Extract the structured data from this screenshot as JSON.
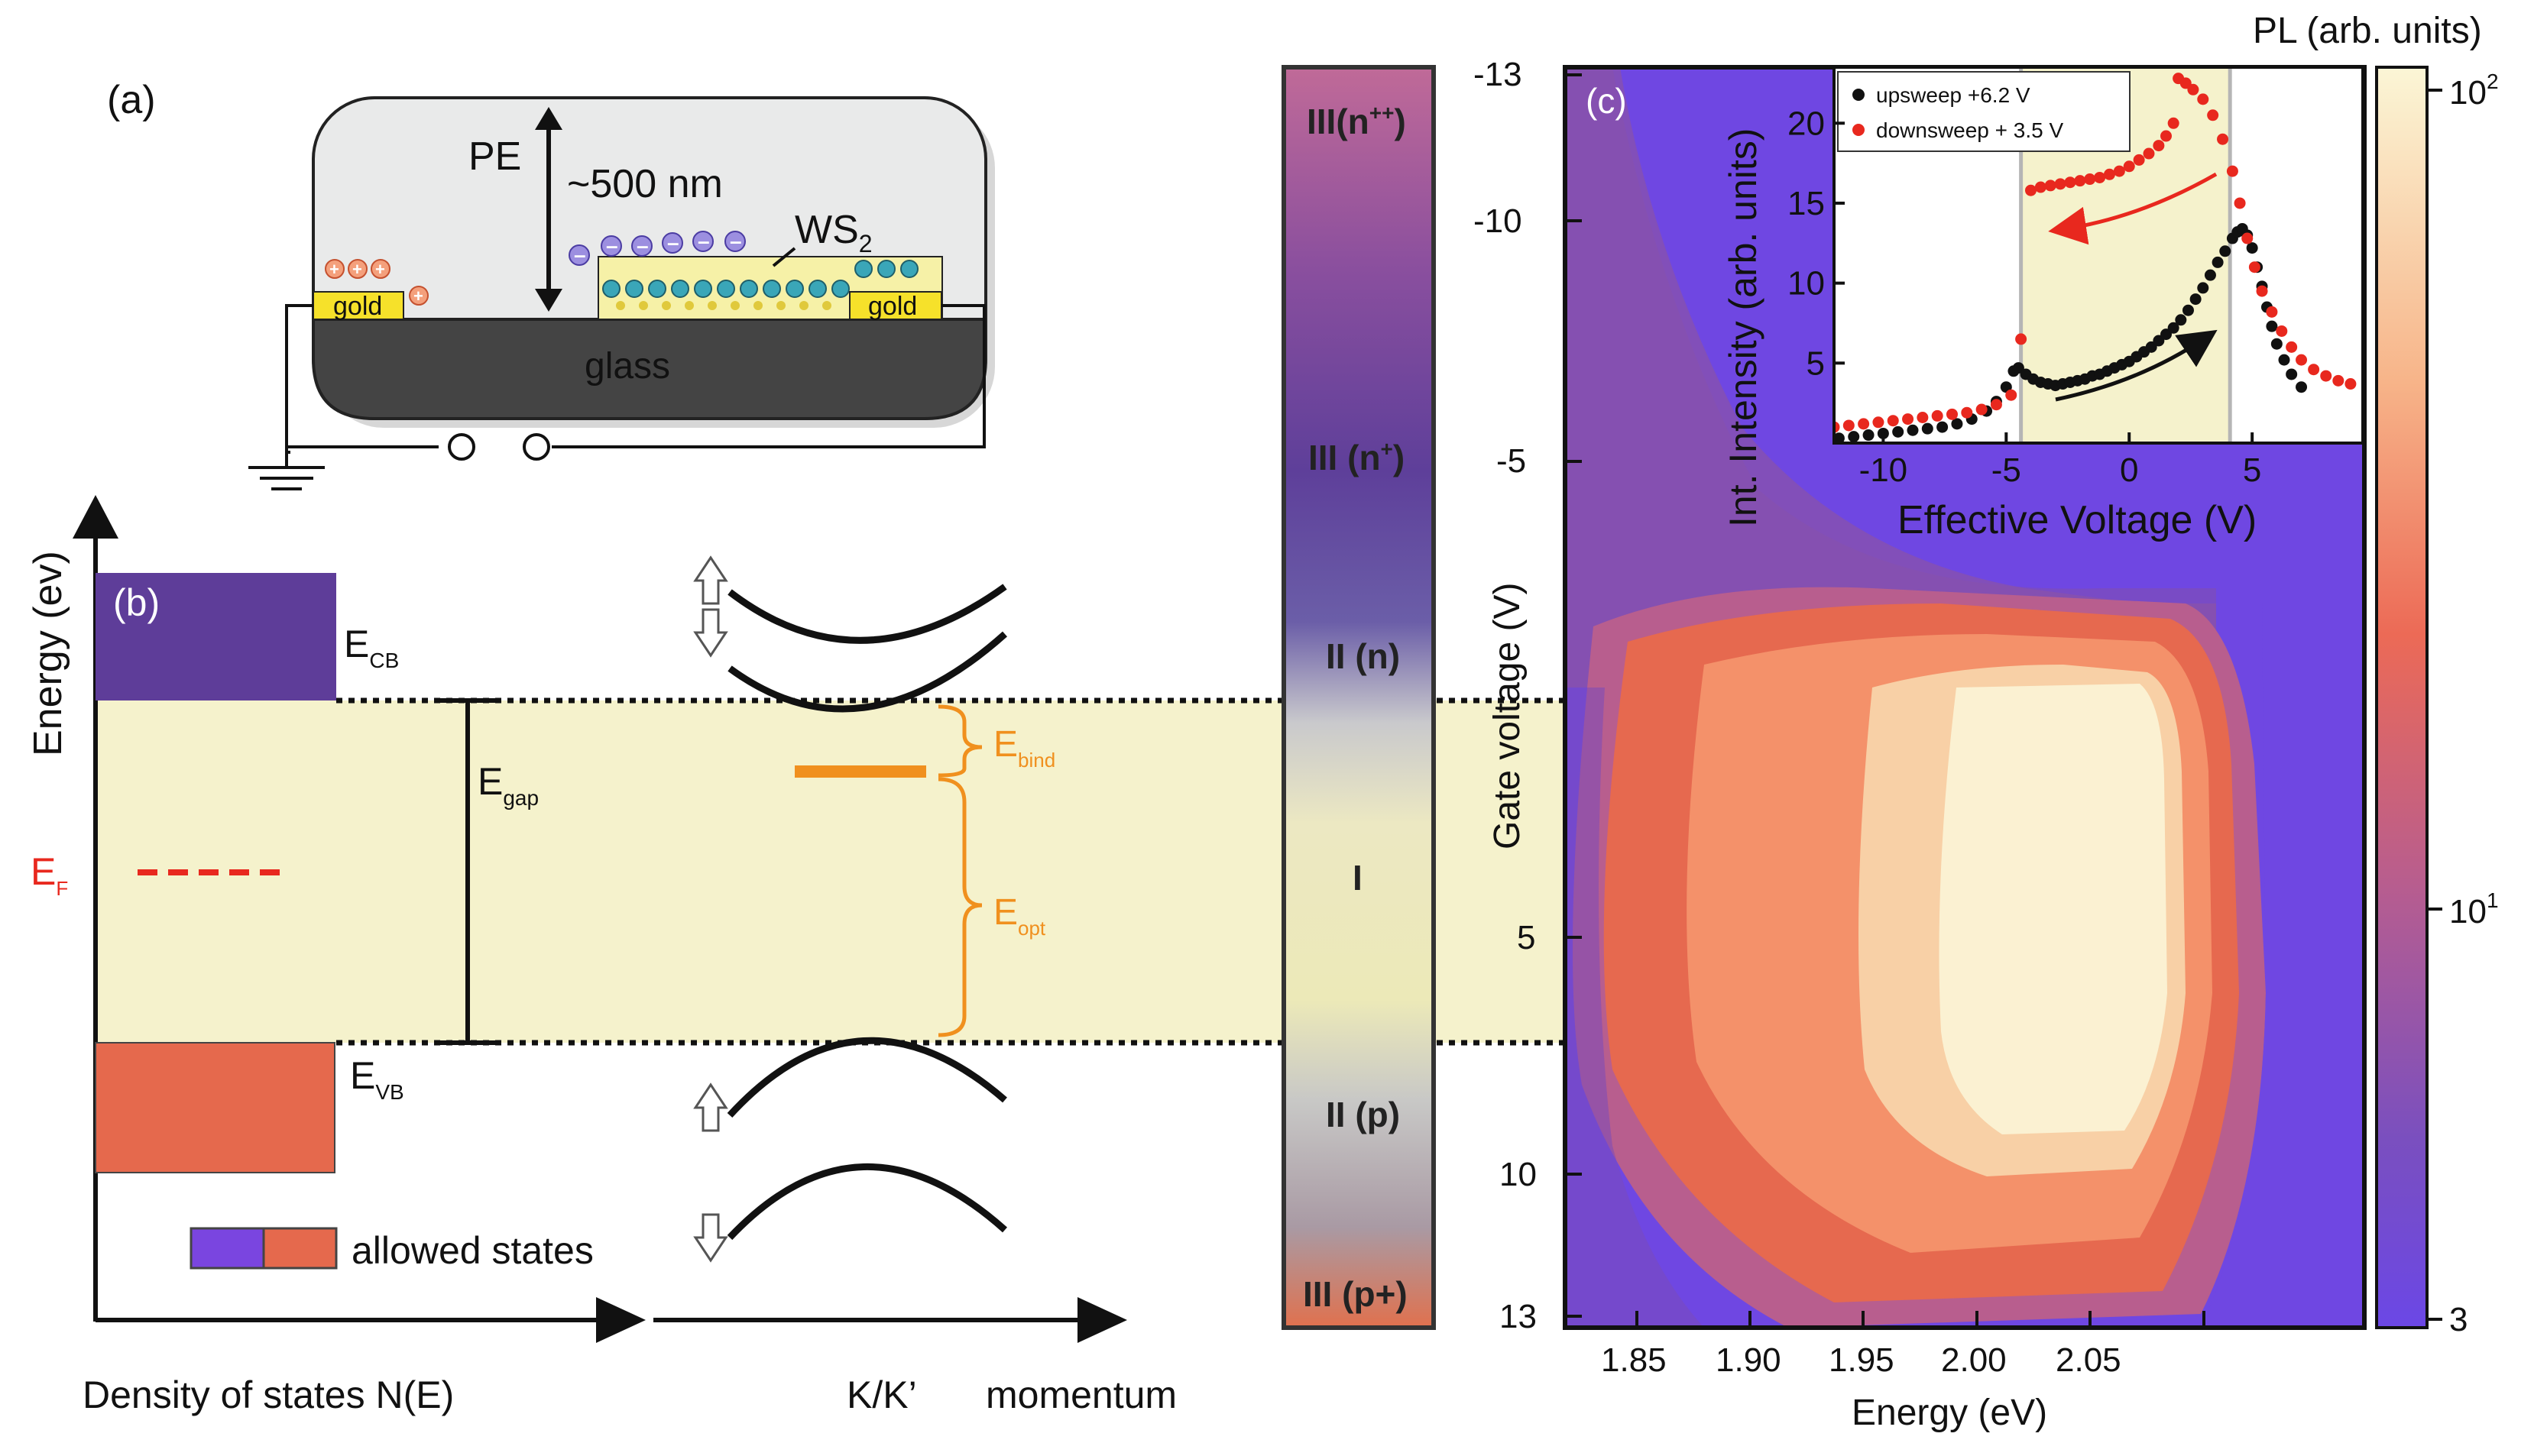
{
  "panel_a": {
    "label": "(a)",
    "pe_label": "PE",
    "thickness_label": "~500 nm",
    "ws2_label": "WS",
    "ws2_sub": "2",
    "gold_left": "gold",
    "gold_right": "gold",
    "glass_label": "glass"
  },
  "panel_b": {
    "label": "(b)",
    "y_axis_label": "Energy (ev)",
    "x_axis_label": "Density of states N(E)",
    "momentum_k_label": "K/K’",
    "momentum_label": "momentum",
    "ecb_main": "E",
    "ecb_sub": "CB",
    "evb_main": "E",
    "evb_sub": "VB",
    "egap_main": "E",
    "egap_sub": "gap",
    "ef_main": "E",
    "ef_sub": "F",
    "ebind_main": "E",
    "ebind_sub": "bind",
    "eopt_main": "E",
    "eopt_sub": "opt",
    "legend_label": "allowed states",
    "colors": {
      "cb": "#5e3d99",
      "vb": "#e5694d",
      "gap": "#f5f2cc",
      "accent": "#f0901e",
      "fermi": "#e8281e"
    }
  },
  "regions": {
    "iii_npp": "III(n",
    "iii_npp_sup": "++",
    "iii_npp_close": ")",
    "iii_np": "III (n",
    "iii_np_sup": "+",
    "iii_np_close": ")",
    "ii_n": "II (n)",
    "i": "I",
    "ii_p": "II (p)",
    "iii_pp": "III (p+)"
  },
  "panel_c": {
    "label": "(c)",
    "x_axis_label": "Energy (eV)",
    "y_axis_label": "Gate voltage (V)",
    "colorbar_label": "PL (arb. units)",
    "x_ticks": [
      "1.85",
      "1.90",
      "1.95",
      "2.00",
      "2.05"
    ],
    "y_ticks": [
      "-13",
      "-10",
      "-5",
      "5",
      "10",
      "13"
    ],
    "cb_tick_top": "10",
    "cb_tick_top_sup": "2",
    "cb_tick_mid": "10",
    "cb_tick_mid_sup": "1",
    "cb_tick_bot": "3"
  },
  "chart_data": {
    "type": "scatter",
    "title": "",
    "xlabel": "Effective Voltage (V)",
    "ylabel": "Int. Intensity (arb. units)",
    "xlim": [
      -12,
      9.5
    ],
    "ylim": [
      0,
      23.5
    ],
    "x_ticks": [
      "-10",
      "-5",
      "0",
      "5"
    ],
    "y_ticks": [
      "5",
      "10",
      "15",
      "20"
    ],
    "shaded_region": [
      -4.4,
      4.1
    ],
    "series": [
      {
        "name": "upsweep +6.2 V",
        "color": "#111111",
        "x": [
          -11.8,
          -11.2,
          -10.6,
          -10.0,
          -9.4,
          -8.8,
          -8.2,
          -7.6,
          -7.0,
          -6.4,
          -5.8,
          -5.4,
          -5.0,
          -4.7,
          -4.5,
          -4.2,
          -3.9,
          -3.6,
          -3.3,
          -3.0,
          -2.7,
          -2.4,
          -2.1,
          -1.8,
          -1.5,
          -1.2,
          -0.9,
          -0.6,
          -0.3,
          0.0,
          0.3,
          0.6,
          0.9,
          1.2,
          1.5,
          1.8,
          2.1,
          2.4,
          2.7,
          3.0,
          3.3,
          3.6,
          3.9,
          4.2,
          4.4,
          4.6,
          4.8,
          5.0,
          5.2,
          5.4,
          5.6,
          5.8,
          6.0,
          6.3,
          6.6,
          7.0
        ],
        "y": [
          0.3,
          0.4,
          0.5,
          0.6,
          0.7,
          0.8,
          0.9,
          1.0,
          1.2,
          1.5,
          2.0,
          2.6,
          3.5,
          4.5,
          4.7,
          4.3,
          4.0,
          3.8,
          3.7,
          3.6,
          3.7,
          3.8,
          3.9,
          4.0,
          4.2,
          4.3,
          4.5,
          4.7,
          4.9,
          5.1,
          5.4,
          5.7,
          6.0,
          6.4,
          6.8,
          7.2,
          7.7,
          8.3,
          9.0,
          9.7,
          10.5,
          11.3,
          12.0,
          12.8,
          13.2,
          13.4,
          13.0,
          12.2,
          11.0,
          9.8,
          8.5,
          7.3,
          6.2,
          5.2,
          4.3,
          3.5
        ]
      },
      {
        "name": "downsweep + 3.5 V",
        "color": "#e8281e",
        "x": [
          -12.0,
          -11.4,
          -10.8,
          -10.2,
          -9.6,
          -9.0,
          -8.4,
          -7.8,
          -7.2,
          -6.6,
          -6.0,
          -5.4,
          -4.8,
          -4.4,
          -4.0,
          -3.6,
          -3.2,
          -2.8,
          -2.4,
          -2.0,
          -1.6,
          -1.2,
          -0.8,
          -0.4,
          0.0,
          0.4,
          0.8,
          1.2,
          1.5,
          1.8,
          2.0,
          2.3,
          2.6,
          3.0,
          3.4,
          3.8,
          4.2,
          4.5,
          4.8,
          5.1,
          5.4,
          5.8,
          6.2,
          6.6,
          7.0,
          7.5,
          8.0,
          8.5,
          9.0
        ],
        "y": [
          1.0,
          1.1,
          1.2,
          1.3,
          1.4,
          1.5,
          1.6,
          1.7,
          1.8,
          1.9,
          2.1,
          2.4,
          3.0,
          6.5,
          15.8,
          16.0,
          16.1,
          16.2,
          16.3,
          16.4,
          16.5,
          16.6,
          16.8,
          17.0,
          17.3,
          17.7,
          18.1,
          18.6,
          19.2,
          20.0,
          22.8,
          22.5,
          22.1,
          21.5,
          20.5,
          19.0,
          17.0,
          15.0,
          12.8,
          11.0,
          9.5,
          8.2,
          7.0,
          6.0,
          5.2,
          4.6,
          4.2,
          3.9,
          3.7
        ]
      }
    ]
  }
}
